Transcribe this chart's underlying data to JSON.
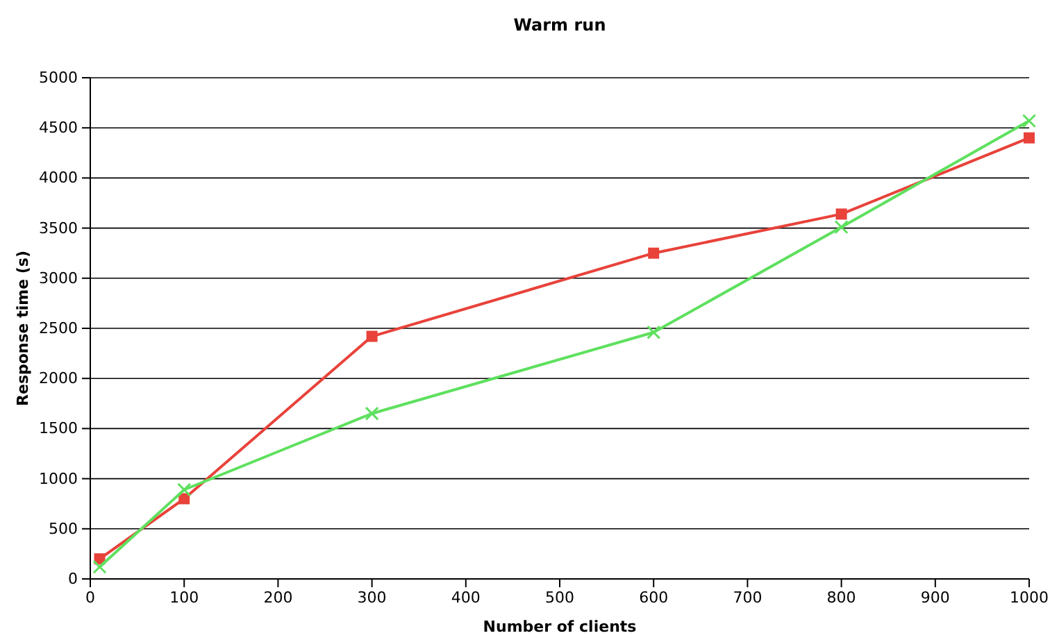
{
  "chart_data": {
    "type": "line",
    "title": "Warm run",
    "xlabel": "Number of clients",
    "ylabel": "Response time (s)",
    "x": [
      10,
      100,
      300,
      600,
      800,
      1000
    ],
    "series": [
      {
        "color": "#e8423a",
        "marker": "square",
        "values": [
          200,
          800,
          2420,
          3250,
          3640,
          4400
        ]
      },
      {
        "color": "#5ee05e",
        "marker": "cross",
        "values": [
          120,
          890,
          1650,
          2460,
          3510,
          4570
        ]
      }
    ],
    "xlim": [
      0,
      1000
    ],
    "xticks": [
      0,
      100,
      200,
      300,
      400,
      500,
      600,
      700,
      800,
      900,
      1000
    ],
    "ylim": [
      0,
      5000
    ],
    "yticks": [
      0,
      500,
      1000,
      1500,
      2000,
      2500,
      3000,
      3500,
      4000,
      4500,
      5000
    ],
    "grid": "y"
  }
}
